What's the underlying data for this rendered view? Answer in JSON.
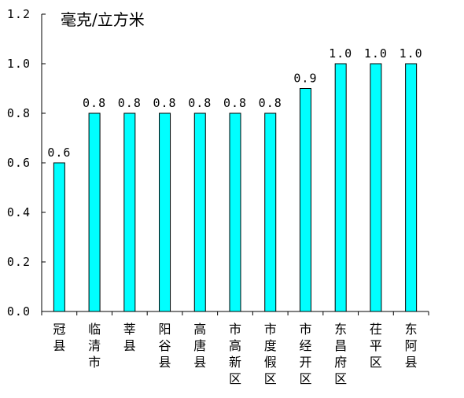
{
  "chart_data": {
    "type": "bar",
    "unit_label": "毫克/立方米",
    "categories": [
      "冠县",
      "临清市",
      "莘县",
      "阳谷县",
      "高唐县",
      "市高新区",
      "市度假区",
      "市经开区",
      "东昌府区",
      "茌平区",
      "东阿县"
    ],
    "values": [
      0.6,
      0.8,
      0.8,
      0.8,
      0.8,
      0.8,
      0.8,
      0.9,
      1.0,
      1.0,
      1.0
    ],
    "value_labels": [
      "0.6",
      "0.8",
      "0.8",
      "0.8",
      "0.8",
      "0.8",
      "0.8",
      "0.9",
      "1.0",
      "1.0",
      "1.0"
    ],
    "yticks": [
      "0.0",
      "0.2",
      "0.4",
      "0.6",
      "0.8",
      "1.0",
      "1.2"
    ],
    "ylim": [
      0,
      1.2
    ],
    "grid": false,
    "bar_color": "#00ffff",
    "bar_edge_color": "#000000"
  }
}
